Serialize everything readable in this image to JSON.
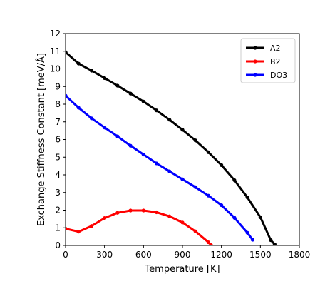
{
  "chart_data": {
    "type": "line",
    "title": "",
    "xlabel": "Temperature [K]",
    "ylabel": "Exchange Stiffness Constant [meV/Å]",
    "xlim": [
      0,
      1800
    ],
    "ylim": [
      0,
      12
    ],
    "xticks": [
      0,
      300,
      600,
      900,
      1200,
      1500,
      1800
    ],
    "yticks": [
      0,
      1,
      2,
      3,
      4,
      5,
      6,
      7,
      8,
      9,
      10,
      11,
      12
    ],
    "grid": false,
    "legend_position": "top-right",
    "series": [
      {
        "name": "A2",
        "color": "#000000",
        "x": [
          0,
          100,
          200,
          300,
          400,
          500,
          600,
          700,
          800,
          900,
          1000,
          1100,
          1200,
          1300,
          1400,
          1500,
          1580,
          1610
        ],
        "y": [
          10.95,
          10.3,
          9.9,
          9.48,
          9.05,
          8.6,
          8.15,
          7.65,
          7.12,
          6.55,
          5.95,
          5.28,
          4.55,
          3.7,
          2.72,
          1.6,
          0.3,
          0.06
        ]
      },
      {
        "name": "B2",
        "color": "#ff0000",
        "x": [
          0,
          100,
          200,
          300,
          400,
          500,
          600,
          700,
          800,
          900,
          1000,
          1100,
          1120
        ],
        "y": [
          0.95,
          0.78,
          1.1,
          1.55,
          1.85,
          1.98,
          1.98,
          1.88,
          1.65,
          1.3,
          0.8,
          0.18,
          0.02
        ]
      },
      {
        "name": "DO3",
        "color": "#0000ff",
        "x": [
          0,
          100,
          200,
          300,
          400,
          500,
          600,
          700,
          800,
          900,
          1000,
          1100,
          1200,
          1300,
          1400,
          1440
        ],
        "y": [
          8.48,
          7.8,
          7.2,
          6.68,
          6.18,
          5.65,
          5.15,
          4.65,
          4.2,
          3.75,
          3.3,
          2.82,
          2.28,
          1.57,
          0.72,
          0.32
        ]
      }
    ]
  }
}
